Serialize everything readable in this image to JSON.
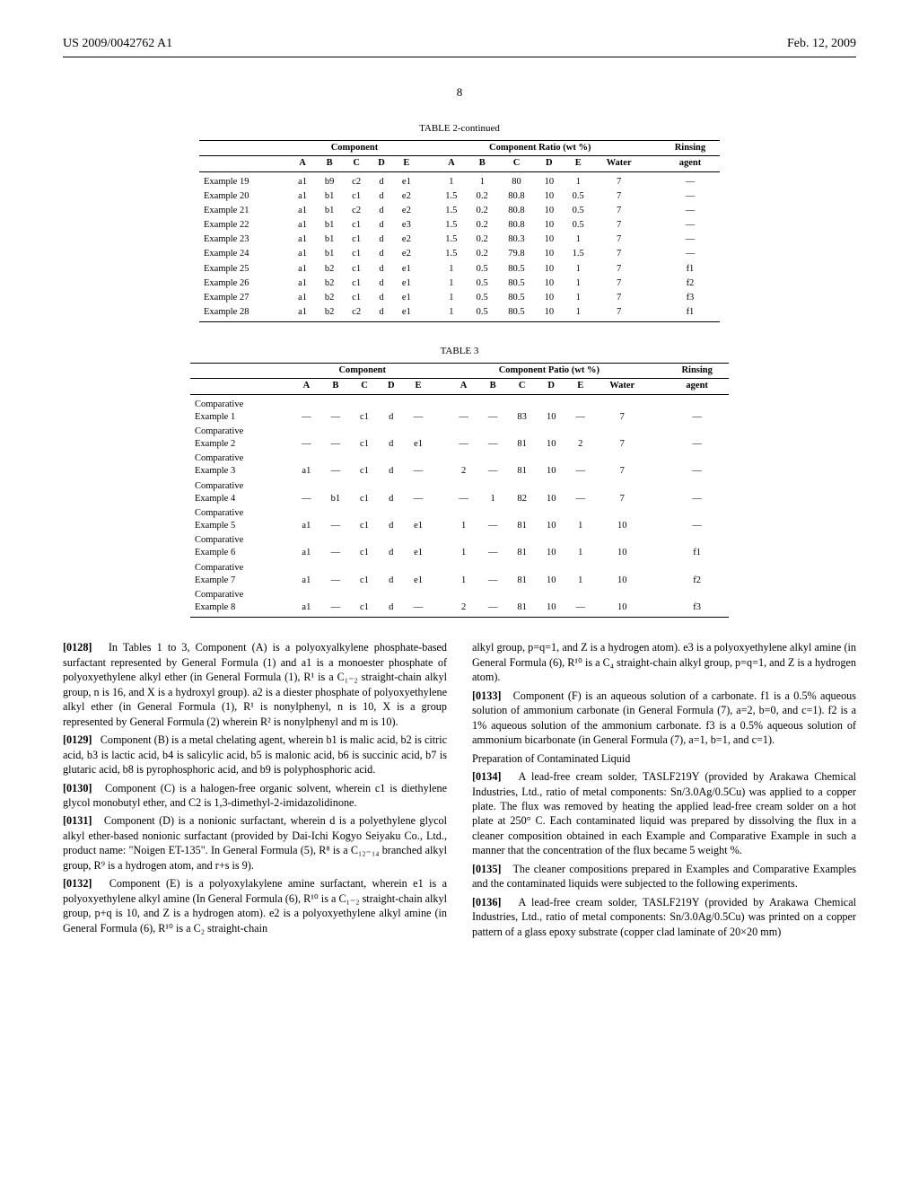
{
  "header": {
    "left": "US 2009/0042762 A1",
    "right": "Feb. 12, 2009"
  },
  "page_number": "8",
  "table2": {
    "title": "TABLE 2-continued",
    "group_heads": {
      "component": "Component",
      "ratio": "Component Ratio (wt %)",
      "rinsing": "Rinsing"
    },
    "col_heads": [
      "A",
      "B",
      "C",
      "D",
      "E",
      "A",
      "B",
      "C",
      "D",
      "E",
      "Water",
      "agent"
    ],
    "rows": [
      {
        "label": "Example 19",
        "cells": [
          "a1",
          "b9",
          "c2",
          "d",
          "e1",
          "1",
          "1",
          "80",
          "10",
          "1",
          "7",
          "—"
        ]
      },
      {
        "label": "Example 20",
        "cells": [
          "a1",
          "b1",
          "c1",
          "d",
          "e2",
          "1.5",
          "0.2",
          "80.8",
          "10",
          "0.5",
          "7",
          "—"
        ]
      },
      {
        "label": "Example 21",
        "cells": [
          "a1",
          "b1",
          "c2",
          "d",
          "e2",
          "1.5",
          "0.2",
          "80.8",
          "10",
          "0.5",
          "7",
          "—"
        ]
      },
      {
        "label": "Example 22",
        "cells": [
          "a1",
          "b1",
          "c1",
          "d",
          "e3",
          "1.5",
          "0.2",
          "80.8",
          "10",
          "0.5",
          "7",
          "—"
        ]
      },
      {
        "label": "Example 23",
        "cells": [
          "a1",
          "b1",
          "c1",
          "d",
          "e2",
          "1.5",
          "0.2",
          "80.3",
          "10",
          "1",
          "7",
          "—"
        ]
      },
      {
        "label": "Example 24",
        "cells": [
          "a1",
          "b1",
          "c1",
          "d",
          "e2",
          "1.5",
          "0.2",
          "79.8",
          "10",
          "1.5",
          "7",
          "—"
        ]
      },
      {
        "label": "Example 25",
        "cells": [
          "a1",
          "b2",
          "c1",
          "d",
          "e1",
          "1",
          "0.5",
          "80.5",
          "10",
          "1",
          "7",
          "f1"
        ]
      },
      {
        "label": "Example 26",
        "cells": [
          "a1",
          "b2",
          "c1",
          "d",
          "e1",
          "1",
          "0.5",
          "80.5",
          "10",
          "1",
          "7",
          "f2"
        ]
      },
      {
        "label": "Example 27",
        "cells": [
          "a1",
          "b2",
          "c1",
          "d",
          "e1",
          "1",
          "0.5",
          "80.5",
          "10",
          "1",
          "7",
          "f3"
        ]
      },
      {
        "label": "Example 28",
        "cells": [
          "a1",
          "b2",
          "c2",
          "d",
          "e1",
          "1",
          "0.5",
          "80.5",
          "10",
          "1",
          "7",
          "f1"
        ]
      }
    ]
  },
  "table3": {
    "title": "TABLE 3",
    "group_heads": {
      "component": "Component",
      "ratio": "Component Patio (wt %)",
      "rinsing": "Rinsing"
    },
    "col_heads": [
      "A",
      "B",
      "C",
      "D",
      "E",
      "A",
      "B",
      "C",
      "D",
      "E",
      "Water",
      "agent"
    ],
    "rows": [
      {
        "label": "Comparative Example 1",
        "cells": [
          "—",
          "—",
          "c1",
          "d",
          "—",
          "—",
          "—",
          "83",
          "10",
          "—",
          "7",
          "—"
        ]
      },
      {
        "label": "Comparative Example 2",
        "cells": [
          "—",
          "—",
          "c1",
          "d",
          "e1",
          "—",
          "—",
          "81",
          "10",
          "2",
          "7",
          "—"
        ]
      },
      {
        "label": "Comparative Example 3",
        "cells": [
          "a1",
          "—",
          "c1",
          "d",
          "—",
          "2",
          "—",
          "81",
          "10",
          "—",
          "7",
          "—"
        ]
      },
      {
        "label": "Comparative Example 4",
        "cells": [
          "—",
          "b1",
          "c1",
          "d",
          "—",
          "—",
          "1",
          "82",
          "10",
          "—",
          "7",
          "—"
        ]
      },
      {
        "label": "Comparative Example 5",
        "cells": [
          "a1",
          "—",
          "c1",
          "d",
          "e1",
          "1",
          "—",
          "81",
          "10",
          "1",
          "10",
          "—"
        ]
      },
      {
        "label": "Comparative Example 6",
        "cells": [
          "a1",
          "—",
          "c1",
          "d",
          "e1",
          "1",
          "—",
          "81",
          "10",
          "1",
          "10",
          "f1"
        ]
      },
      {
        "label": "Comparative Example 7",
        "cells": [
          "a1",
          "—",
          "c1",
          "d",
          "e1",
          "1",
          "—",
          "81",
          "10",
          "1",
          "10",
          "f2"
        ]
      },
      {
        "label": "Comparative Example 8",
        "cells": [
          "a1",
          "—",
          "c1",
          "d",
          "—",
          "2",
          "—",
          "81",
          "10",
          "—",
          "10",
          "f3"
        ]
      }
    ]
  },
  "paragraphs": {
    "p128": "In Tables 1 to 3, Component (A) is a polyoxyalkylene phosphate-based surfactant represented by General Formula (1) and a1 is a monoester phosphate of polyoxyethylene alkyl ether (in General Formula (1), R¹ is a C₁₋₂ straight-chain alkyl group, n is 16, and X is a hydroxyl group). a2 is a diester phosphate of polyoxyethylene alkyl ether (in General Formula (1), R¹ is nonylphenyl, n is 10, X is a group represented by General Formula (2) wherein R² is nonylphenyl and m is 10).",
    "p129": "Component (B) is a metal chelating agent, wherein b1 is malic acid, b2 is citric acid, b3 is lactic acid, b4 is salicylic acid, b5 is malonic acid, b6 is succinic acid, b7 is glutaric acid, b8 is pyrophosphoric acid, and b9 is polyphosphoric acid.",
    "p130": "Component (C) is a halogen-free organic solvent, wherein c1 is diethylene glycol monobutyl ether, and C2 is 1,3-dimethyl-2-imidazolidinone.",
    "p131": "Component (D) is a nonionic surfactant, wherein d is a polyethylene glycol alkyl ether-based nonionic surfactant (provided by Dai-Ichi Kogyo Seiyaku Co., Ltd., product name: \"Noigen ET-135\". In General Formula (5), R⁸ is a C₁₂₋₁₄ branched alkyl group, R⁹ is a hydrogen atom, and r+s is 9).",
    "p132": "Component (E) is a polyoxylakylene amine surfactant, wherein e1 is a polyoxyethylene alkyl amine (In General Formula (6), R¹⁰ is a C₁₋₂ straight-chain alkyl group, p+q is 10, and Z is a hydrogen atom). e2 is a polyoxyethylene alkyl amine (in General Formula (6), R¹⁰ is a C₂ straight-chain",
    "p132b": "alkyl group, p=q=1, and Z is a hydrogen atom). e3 is a polyoxyethylene alkyl amine (in General Formula (6), R¹⁰ is a C₄ straight-chain alkyl group, p=q=1, and Z is a hydrogen atom).",
    "p133": "Component (F) is an aqueous solution of a carbonate. f1 is a 0.5% aqueous solution of ammonium carbonate (in General Formula (7), a=2, b=0, and c=1). f2 is a 1% aqueous solution of the ammonium carbonate. f3 is a 0.5% aqueous solution of ammonium bicarbonate (in General Formula (7), a=1, b=1, and c=1).",
    "prep_head": "Preparation of Contaminated Liquid",
    "p134": "A lead-free cream solder, TASLF219Y (provided by Arakawa Chemical Industries, Ltd., ratio of metal components: Sn/3.0Ag/0.5Cu) was applied to a copper plate. The flux was removed by heating the applied lead-free cream solder on a hot plate at 250° C. Each contaminated liquid was prepared by dissolving the flux in a cleaner composition obtained in each Example and Comparative Example in such a manner that the concentration of the flux became 5 weight %.",
    "p135": "The cleaner compositions prepared in Examples and Comparative Examples and the contaminated liquids were subjected to the following experiments.",
    "p136": "A lead-free cream solder, TASLF219Y (provided by Arakawa Chemical Industries, Ltd., ratio of metal components: Sn/3.0Ag/0.5Cu) was printed on a copper pattern of a glass epoxy substrate (copper clad laminate of 20×20 mm)",
    "n128": "[0128]",
    "n129": "[0129]",
    "n130": "[0130]",
    "n131": "[0131]",
    "n132": "[0132]",
    "n133": "[0133]",
    "n134": "[0134]",
    "n135": "[0135]",
    "n136": "[0136]"
  }
}
